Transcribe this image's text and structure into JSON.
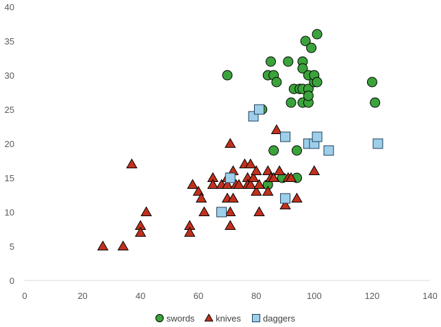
{
  "chart_data": {
    "type": "scatter",
    "title": "",
    "xlabel": "",
    "ylabel": "",
    "xlim": [
      0,
      140
    ],
    "ylim": [
      0,
      40
    ],
    "x_ticks": [
      0,
      20,
      40,
      60,
      80,
      100,
      120,
      140
    ],
    "y_ticks": [
      0,
      5,
      10,
      15,
      20,
      25,
      30,
      35,
      40
    ],
    "grid": false,
    "legend_position": "bottom",
    "series": [
      {
        "name": "swords",
        "marker": "circle",
        "color": "#3BA33B",
        "points": [
          [
            70,
            30
          ],
          [
            82,
            25
          ],
          [
            84,
            30
          ],
          [
            85,
            32
          ],
          [
            86,
            30
          ],
          [
            87,
            29
          ],
          [
            86,
            19
          ],
          [
            84,
            14
          ],
          [
            89,
            15
          ],
          [
            91,
            32
          ],
          [
            92,
            26
          ],
          [
            93,
            28
          ],
          [
            94,
            19
          ],
          [
            94,
            15
          ],
          [
            95,
            28
          ],
          [
            96,
            32
          ],
          [
            96,
            31
          ],
          [
            96,
            28
          ],
          [
            96,
            26
          ],
          [
            97,
            35
          ],
          [
            98,
            30
          ],
          [
            98,
            28
          ],
          [
            98,
            26
          ],
          [
            98,
            27
          ],
          [
            99,
            34
          ],
          [
            100,
            29
          ],
          [
            100,
            30
          ],
          [
            101,
            29
          ],
          [
            101,
            36
          ],
          [
            120,
            29
          ],
          [
            121,
            26
          ]
        ]
      },
      {
        "name": "knives",
        "marker": "triangle",
        "color": "#C1311D",
        "points": [
          [
            27,
            5
          ],
          [
            34,
            5
          ],
          [
            37,
            17
          ],
          [
            40,
            8
          ],
          [
            40,
            7
          ],
          [
            42,
            10
          ],
          [
            57,
            8
          ],
          [
            57,
            7
          ],
          [
            58,
            14
          ],
          [
            60,
            13
          ],
          [
            61,
            12
          ],
          [
            62,
            10
          ],
          [
            65,
            15
          ],
          [
            65,
            14
          ],
          [
            68,
            14
          ],
          [
            70,
            12
          ],
          [
            70,
            14
          ],
          [
            71,
            20
          ],
          [
            71,
            10
          ],
          [
            71,
            8
          ],
          [
            72,
            12
          ],
          [
            72,
            16
          ],
          [
            73,
            14
          ],
          [
            76,
            17
          ],
          [
            77,
            15
          ],
          [
            77,
            14
          ],
          [
            78,
            17
          ],
          [
            78,
            14
          ],
          [
            79,
            15
          ],
          [
            80,
            16
          ],
          [
            80,
            13
          ],
          [
            81,
            14
          ],
          [
            81,
            10
          ],
          [
            84,
            16
          ],
          [
            84,
            13
          ],
          [
            85,
            15
          ],
          [
            86,
            15
          ],
          [
            87,
            22
          ],
          [
            88,
            16
          ],
          [
            90,
            11
          ],
          [
            91,
            15
          ],
          [
            92,
            15
          ],
          [
            94,
            12
          ],
          [
            100,
            16
          ],
          [
            70,
            15
          ],
          [
            74,
            14
          ]
        ]
      },
      {
        "name": "daggers",
        "marker": "square",
        "color": "#9DCFEB",
        "points": [
          [
            68,
            10
          ],
          [
            71,
            15
          ],
          [
            79,
            24
          ],
          [
            81,
            25
          ],
          [
            90,
            21
          ],
          [
            90,
            12
          ],
          [
            98,
            20
          ],
          [
            100,
            20
          ],
          [
            101,
            21
          ],
          [
            105,
            19
          ],
          [
            122,
            20
          ]
        ]
      }
    ]
  }
}
